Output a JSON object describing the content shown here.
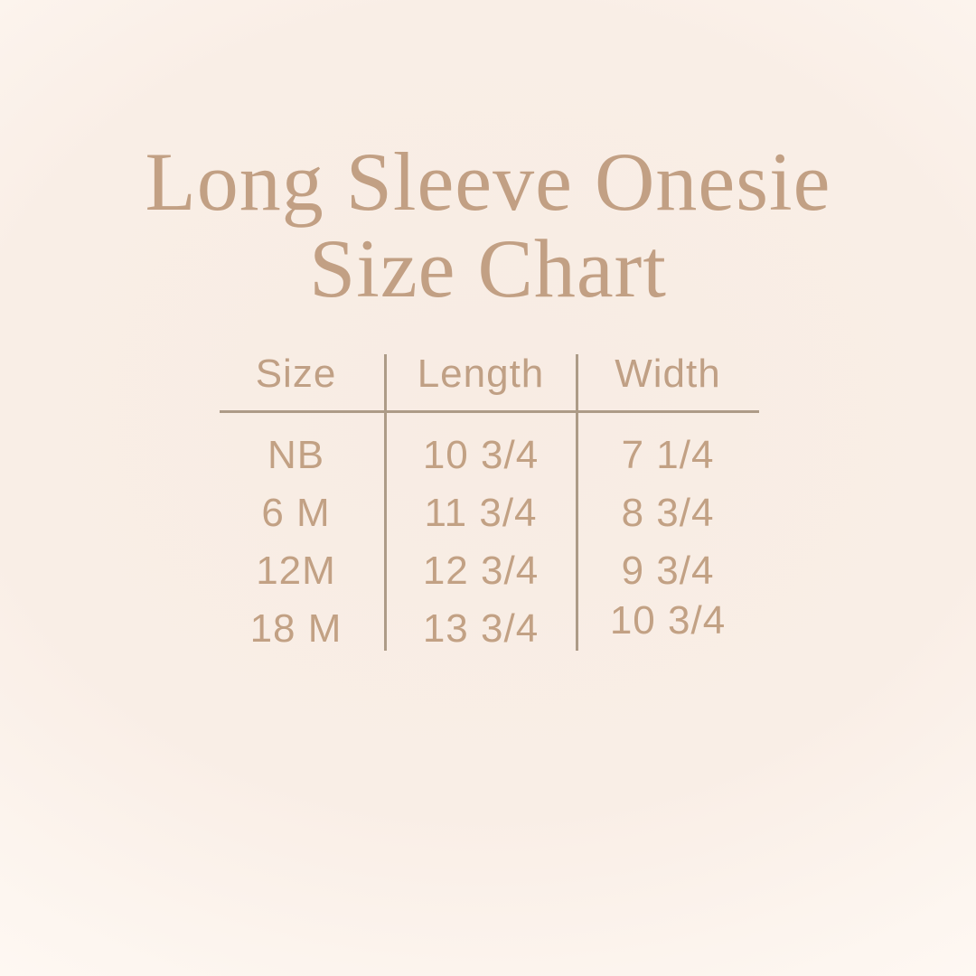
{
  "title": {
    "line1": "Long Sleeve Onesie",
    "line2": "Size Chart"
  },
  "chart_data": {
    "type": "table",
    "title": "Long Sleeve Onesie Size Chart",
    "columns": [
      "Size",
      "Length",
      "Width"
    ],
    "rows": [
      [
        "NB",
        "10 3/4",
        "7 1/4"
      ],
      [
        "6 M",
        "11 3/4",
        "8 3/4"
      ],
      [
        "12M",
        "12 3/4",
        "9 3/4"
      ],
      [
        "18 M",
        "13 3/4",
        "10 3/4"
      ]
    ],
    "layout_hints": {
      "header_divider": "horizontal line under header row",
      "column_dividers": "vertical lines between all three columns",
      "alignment": "center"
    }
  },
  "colors": {
    "background_center": "#f8ece3",
    "background_edge": "#fff9f4",
    "title_text": "#c2a084",
    "table_text": "#c2a184",
    "divider_lines": "#ad9b87"
  }
}
